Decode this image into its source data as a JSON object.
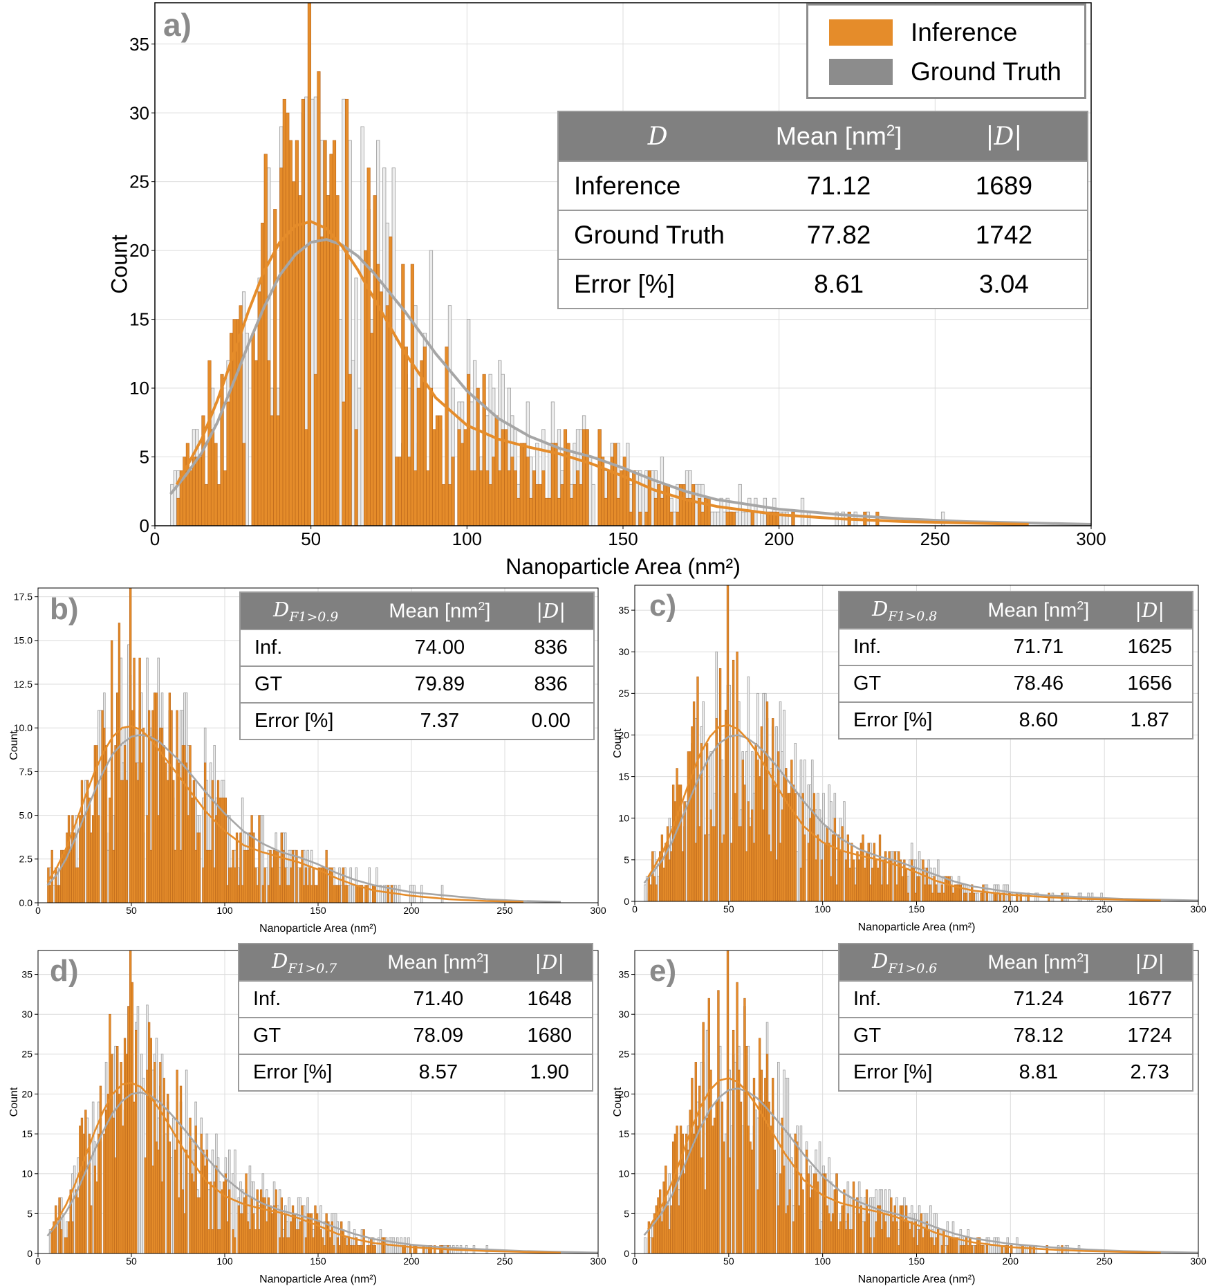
{
  "colors": {
    "inference": "#E58C2A",
    "ground_truth": "#8C8C8C",
    "gt_curve": "#A6A6A6",
    "gt_bar_fill": "#ECECEC"
  },
  "legend": {
    "inference": "Inference",
    "ground_truth": "Ground Truth"
  },
  "chart_data": [
    {
      "id": "a",
      "panel_label": "a)",
      "type": "histogram",
      "xlabel": "Nanoparticle Area (nm²)",
      "ylabel": "Count",
      "xlim": [
        0,
        300
      ],
      "ylim": [
        0,
        38
      ],
      "xticks": [
        0,
        50,
        100,
        150,
        200,
        250,
        300
      ],
      "yticks": [
        0,
        5,
        10,
        15,
        20,
        25,
        30,
        35
      ],
      "bin_width": 1,
      "peak_count": 38,
      "kde": {
        "inference": {
          "x": [
            7,
            10,
            15,
            20,
            25,
            30,
            35,
            40,
            45,
            50,
            55,
            60,
            65,
            70,
            75,
            80,
            90,
            100,
            110,
            120,
            130,
            140,
            150,
            160,
            170,
            180,
            200,
            220,
            240,
            260,
            280
          ],
          "y": [
            3.0,
            4.2,
            6.3,
            9.1,
            12.3,
            15.6,
            18.5,
            20.6,
            21.8,
            22.1,
            21.6,
            20.3,
            18.6,
            16.6,
            14.6,
            12.6,
            9.3,
            7.3,
            6.3,
            5.7,
            5.2,
            4.5,
            3.6,
            2.6,
            1.9,
            1.4,
            0.8,
            0.5,
            0.3,
            0.2,
            0.1
          ]
        },
        "ground_truth": {
          "x": [
            5,
            10,
            15,
            20,
            25,
            30,
            35,
            40,
            45,
            50,
            55,
            60,
            65,
            70,
            75,
            80,
            90,
            100,
            110,
            120,
            130,
            140,
            150,
            160,
            170,
            180,
            200,
            220,
            240,
            260,
            280,
            300
          ],
          "y": [
            2.3,
            3.7,
            5.3,
            7.5,
            10.3,
            13.2,
            15.9,
            18.2,
            19.7,
            20.6,
            20.8,
            20.4,
            19.6,
            18.4,
            17.0,
            15.6,
            12.5,
            9.8,
            7.8,
            6.5,
            5.6,
            5.0,
            4.2,
            3.3,
            2.5,
            1.9,
            1.2,
            0.8,
            0.5,
            0.3,
            0.2,
            0.1
          ]
        }
      },
      "table": {
        "headers": [
          "D",
          "Mean [nm²]",
          "|D|"
        ],
        "rows": [
          [
            "Inference",
            "71.12",
            "1689"
          ],
          [
            "Ground Truth",
            "77.82",
            "1742"
          ],
          [
            "Error [%]",
            "8.61",
            "3.04"
          ]
        ]
      }
    },
    {
      "id": "b",
      "panel_label": "b)",
      "type": "histogram",
      "xlabel": "Nanoparticle Area (nm²)",
      "ylabel": "Count",
      "xlim": [
        0,
        300
      ],
      "ylim": [
        0,
        18
      ],
      "xticks": [
        0,
        50,
        100,
        150,
        200,
        250,
        300
      ],
      "yticks": [
        0.0,
        2.5,
        5.0,
        7.5,
        10.0,
        12.5,
        15.0,
        17.5
      ],
      "ytick_labels": [
        "0.0",
        "2.5",
        "5.0",
        "7.5",
        "10.0",
        "12.5",
        "15.0",
        "17.5"
      ],
      "bin_width": 1,
      "peak_count": 18,
      "kde": {
        "inference": {
          "x": [
            5,
            10,
            15,
            20,
            25,
            30,
            35,
            40,
            45,
            50,
            55,
            60,
            65,
            70,
            75,
            80,
            90,
            100,
            110,
            120,
            130,
            140,
            150,
            160,
            170,
            180,
            200,
            220,
            240,
            260
          ],
          "y": [
            1.2,
            2.0,
            3.1,
            4.5,
            6.0,
            7.4,
            8.6,
            9.5,
            10.0,
            10.1,
            9.9,
            9.4,
            8.7,
            8.0,
            7.3,
            6.6,
            5.2,
            4.1,
            3.3,
            2.9,
            2.6,
            2.3,
            1.9,
            1.4,
            1.0,
            0.7,
            0.4,
            0.2,
            0.1,
            0.05
          ]
        },
        "ground_truth": {
          "x": [
            5,
            10,
            15,
            20,
            25,
            30,
            35,
            40,
            45,
            50,
            55,
            60,
            65,
            70,
            75,
            80,
            90,
            100,
            110,
            120,
            130,
            140,
            150,
            160,
            170,
            180,
            200,
            220,
            240,
            260,
            280
          ],
          "y": [
            1.0,
            1.6,
            2.5,
            3.7,
            5.0,
            6.3,
            7.5,
            8.5,
            9.1,
            9.5,
            9.6,
            9.5,
            9.2,
            8.7,
            8.2,
            7.6,
            6.3,
            5.1,
            4.1,
            3.4,
            2.9,
            2.6,
            2.2,
            1.7,
            1.3,
            1.0,
            0.6,
            0.4,
            0.2,
            0.1,
            0.05
          ]
        }
      },
      "table": {
        "headers": [
          "D",
          "F1>0.9",
          "Mean [nm²]",
          "|D|"
        ],
        "rows": [
          [
            "Inf.",
            "74.00",
            "836"
          ],
          [
            "GT",
            "79.89",
            "836"
          ],
          [
            "Error [%]",
            "7.37",
            "0.00"
          ]
        ]
      }
    },
    {
      "id": "c",
      "panel_label": "c)",
      "type": "histogram",
      "xlabel": "Nanoparticle Area (nm²)",
      "ylabel": "Count",
      "xlim": [
        0,
        300
      ],
      "ylim": [
        0,
        38
      ],
      "xticks": [
        0,
        50,
        100,
        150,
        200,
        250,
        300
      ],
      "yticks": [
        0,
        5,
        10,
        15,
        20,
        25,
        30,
        35
      ],
      "bin_width": 1,
      "peak_count": 38,
      "kde": {
        "inference": {
          "x": [
            7,
            10,
            15,
            20,
            25,
            30,
            35,
            40,
            45,
            50,
            55,
            60,
            65,
            70,
            75,
            80,
            90,
            100,
            110,
            120,
            130,
            140,
            150,
            160,
            170,
            180,
            200,
            220,
            240,
            260,
            280
          ],
          "y": [
            2.9,
            4.0,
            6.0,
            8.7,
            11.8,
            15.0,
            17.8,
            19.8,
            21.0,
            21.2,
            20.7,
            19.5,
            17.9,
            16.0,
            14.1,
            12.2,
            9.0,
            7.1,
            6.1,
            5.5,
            5.0,
            4.3,
            3.5,
            2.5,
            1.8,
            1.3,
            0.8,
            0.5,
            0.3,
            0.2,
            0.1
          ]
        },
        "ground_truth": {
          "x": [
            5,
            10,
            15,
            20,
            25,
            30,
            35,
            40,
            45,
            50,
            55,
            60,
            65,
            70,
            75,
            80,
            90,
            100,
            110,
            120,
            130,
            140,
            150,
            160,
            170,
            180,
            200,
            220,
            240,
            260,
            280,
            300
          ],
          "y": [
            2.2,
            3.6,
            5.1,
            7.2,
            9.9,
            12.7,
            15.3,
            17.5,
            19.0,
            19.8,
            20.0,
            19.6,
            18.8,
            17.7,
            16.4,
            15.0,
            12.0,
            9.4,
            7.5,
            6.2,
            5.4,
            4.8,
            4.0,
            3.2,
            2.4,
            1.8,
            1.1,
            0.7,
            0.5,
            0.3,
            0.2,
            0.1
          ]
        }
      },
      "table": {
        "headers": [
          "D",
          "F1>0.8",
          "Mean [nm²]",
          "|D|"
        ],
        "rows": [
          [
            "Inf.",
            "71.71",
            "1625"
          ],
          [
            "GT",
            "78.46",
            "1656"
          ],
          [
            "Error [%]",
            "8.60",
            "1.87"
          ]
        ]
      }
    },
    {
      "id": "d",
      "panel_label": "d)",
      "type": "histogram",
      "xlabel": "Nanoparticle Area (nm²)",
      "ylabel": "Count",
      "xlim": [
        0,
        300
      ],
      "ylim": [
        0,
        38
      ],
      "xticks": [
        0,
        50,
        100,
        150,
        200,
        250,
        300
      ],
      "yticks": [
        0,
        5,
        10,
        15,
        20,
        25,
        30,
        35
      ],
      "bin_width": 1,
      "peak_count": 38,
      "kde": {
        "inference": {
          "x": [
            7,
            10,
            15,
            20,
            25,
            30,
            35,
            40,
            45,
            50,
            55,
            60,
            65,
            70,
            75,
            80,
            90,
            100,
            110,
            120,
            130,
            140,
            150,
            160,
            170,
            180,
            200,
            220,
            240,
            260,
            280
          ],
          "y": [
            2.9,
            4.1,
            6.1,
            8.8,
            11.9,
            15.1,
            17.9,
            20.0,
            21.2,
            21.4,
            20.9,
            19.7,
            18.1,
            16.2,
            14.2,
            12.3,
            9.1,
            7.2,
            6.2,
            5.6,
            5.1,
            4.4,
            3.5,
            2.5,
            1.8,
            1.3,
            0.8,
            0.5,
            0.3,
            0.2,
            0.1
          ]
        },
        "ground_truth": {
          "x": [
            5,
            10,
            15,
            20,
            25,
            30,
            35,
            40,
            45,
            50,
            55,
            60,
            65,
            70,
            75,
            80,
            90,
            100,
            110,
            120,
            130,
            140,
            150,
            160,
            170,
            180,
            200,
            220,
            240,
            260,
            280,
            300
          ],
          "y": [
            2.2,
            3.6,
            5.2,
            7.3,
            10.0,
            12.8,
            15.4,
            17.6,
            19.1,
            20.0,
            20.2,
            19.8,
            19.0,
            17.8,
            16.5,
            15.1,
            12.1,
            9.5,
            7.6,
            6.3,
            5.4,
            4.8,
            4.1,
            3.2,
            2.4,
            1.8,
            1.1,
            0.7,
            0.5,
            0.3,
            0.2,
            0.1
          ]
        }
      },
      "table": {
        "headers": [
          "D",
          "F1>0.7",
          "Mean [nm²]",
          "|D|"
        ],
        "rows": [
          [
            "Inf.",
            "71.40",
            "1648"
          ],
          [
            "GT",
            "78.09",
            "1680"
          ],
          [
            "Error [%]",
            "8.57",
            "1.90"
          ]
        ]
      }
    },
    {
      "id": "e",
      "panel_label": "e)",
      "type": "histogram",
      "xlabel": "Nanoparticle Area (nm²)",
      "ylabel": "Count",
      "xlim": [
        0,
        300
      ],
      "ylim": [
        0,
        38
      ],
      "xticks": [
        0,
        50,
        100,
        150,
        200,
        250,
        300
      ],
      "yticks": [
        0,
        5,
        10,
        15,
        20,
        25,
        30,
        35
      ],
      "bin_width": 1,
      "peak_count": 38,
      "kde": {
        "inference": {
          "x": [
            7,
            10,
            15,
            20,
            25,
            30,
            35,
            40,
            45,
            50,
            55,
            60,
            65,
            70,
            75,
            80,
            90,
            100,
            110,
            120,
            130,
            140,
            150,
            160,
            170,
            180,
            200,
            220,
            240,
            260,
            280
          ],
          "y": [
            3.0,
            4.2,
            6.3,
            9.0,
            12.2,
            15.5,
            18.4,
            20.5,
            21.7,
            22.0,
            21.5,
            20.2,
            18.5,
            16.5,
            14.5,
            12.5,
            9.2,
            7.3,
            6.3,
            5.7,
            5.2,
            4.5,
            3.6,
            2.6,
            1.9,
            1.4,
            0.8,
            0.5,
            0.3,
            0.2,
            0.1
          ]
        },
        "ground_truth": {
          "x": [
            5,
            10,
            15,
            20,
            25,
            30,
            35,
            40,
            45,
            50,
            55,
            60,
            65,
            70,
            75,
            80,
            90,
            100,
            110,
            120,
            130,
            140,
            150,
            160,
            170,
            180,
            200,
            220,
            240,
            260,
            280,
            300
          ],
          "y": [
            2.3,
            3.7,
            5.3,
            7.4,
            10.2,
            13.1,
            15.8,
            18.1,
            19.6,
            20.5,
            20.7,
            20.3,
            19.5,
            18.3,
            16.9,
            15.5,
            12.4,
            9.7,
            7.7,
            6.4,
            5.5,
            4.9,
            4.2,
            3.3,
            2.5,
            1.9,
            1.2,
            0.8,
            0.5,
            0.3,
            0.2,
            0.1
          ]
        }
      },
      "table": {
        "headers": [
          "D",
          "F1>0.6",
          "Mean [nm²]",
          "|D|"
        ],
        "rows": [
          [
            "Inf.",
            "71.24",
            "1677"
          ],
          [
            "GT",
            "78.12",
            "1724"
          ],
          [
            "Error [%]",
            "8.81",
            "2.73"
          ]
        ]
      }
    }
  ]
}
